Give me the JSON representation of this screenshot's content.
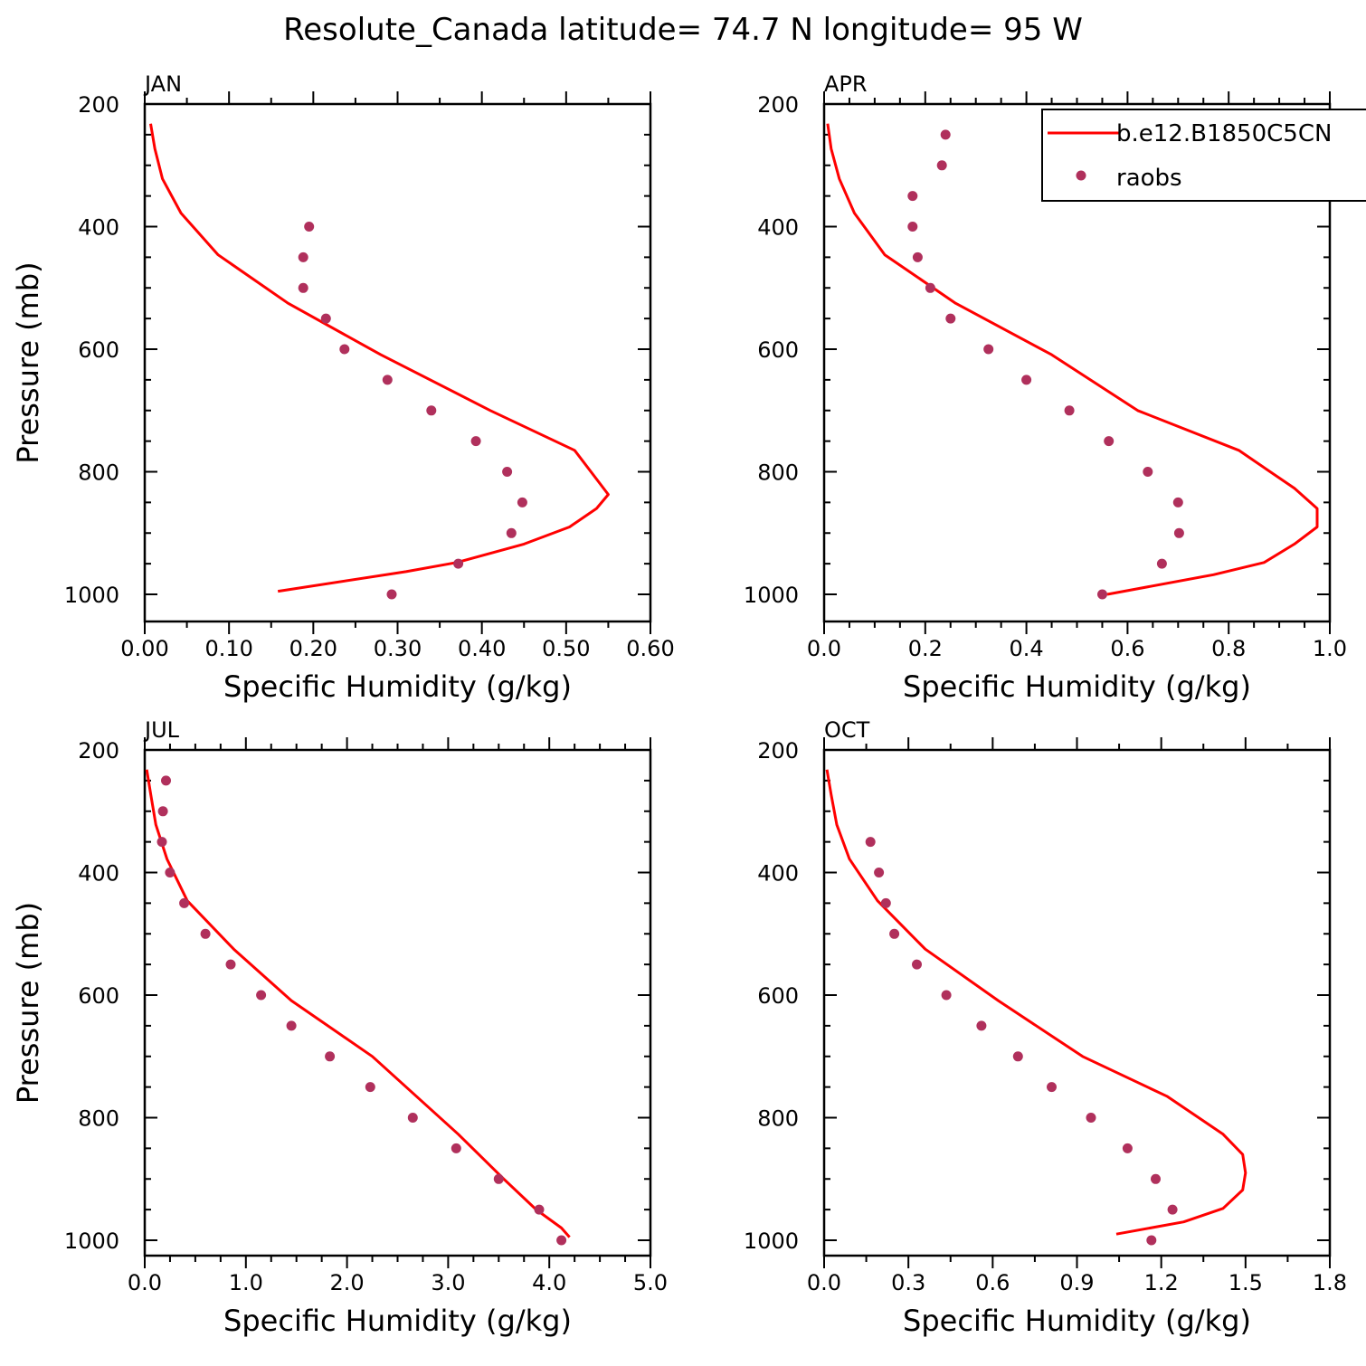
{
  "title": "Resolute_Canada  latitude= 74.7 N longitude= 95 W",
  "colors": {
    "model": "#ff0000",
    "obs": "#b0305c"
  },
  "legend": {
    "model_label": "b.e12.B1850C5CN",
    "obs_label": "raobs"
  },
  "chart_data": [
    {
      "type": "line",
      "panel": "JAN",
      "xlabel": "Specific Humidity (g/kg)",
      "ylabel": "Pressure (mb)",
      "xlim": [
        0,
        0.6
      ],
      "ylim": [
        1000,
        200
      ],
      "xticks": [
        "0.00",
        "0.10",
        "0.20",
        "0.30",
        "0.40",
        "0.50",
        "0.60"
      ],
      "yticks": [
        "200",
        "400",
        "600",
        "800",
        "1000"
      ],
      "series": [
        {
          "name": "b.e12.B1850C5CN",
          "type": "line",
          "x": [
            0.007,
            0.012,
            0.021,
            0.043,
            0.087,
            0.17,
            0.28,
            0.41,
            0.51,
            0.55,
            0.536,
            0.504,
            0.45,
            0.37,
            0.31,
            0.158
          ],
          "y": [
            232,
            273,
            322,
            378,
            446,
            525,
            609,
            700,
            765,
            837,
            860,
            890,
            918,
            948,
            963,
            995
          ]
        },
        {
          "name": "raobs",
          "type": "scatter",
          "x": [
            0.195,
            0.188,
            0.188,
            0.215,
            0.237,
            0.288,
            0.34,
            0.393,
            0.43,
            0.448,
            0.435,
            0.372,
            0.293
          ],
          "y": [
            400,
            450,
            500,
            550,
            600,
            650,
            700,
            750,
            800,
            850,
            900,
            950,
            1000
          ]
        }
      ]
    },
    {
      "type": "line",
      "panel": "APR",
      "xlabel": "Specific Humidity (g/kg)",
      "ylabel": "",
      "xlim": [
        0,
        1.0
      ],
      "ylim": [
        1000,
        200
      ],
      "xticks": [
        "0.0",
        "0.2",
        "0.4",
        "0.6",
        "0.8",
        "1.0"
      ],
      "yticks": [
        "200",
        "400",
        "600",
        "800",
        "1000"
      ],
      "series": [
        {
          "name": "b.e12.B1850C5CN",
          "type": "line",
          "x": [
            0.007,
            0.014,
            0.03,
            0.06,
            0.12,
            0.26,
            0.45,
            0.62,
            0.82,
            0.93,
            0.975,
            0.975,
            0.93,
            0.87,
            0.77,
            0.56
          ],
          "y": [
            232,
            273,
            322,
            378,
            446,
            525,
            609,
            700,
            765,
            827,
            860,
            890,
            918,
            948,
            968,
            1000
          ]
        },
        {
          "name": "raobs",
          "type": "scatter",
          "x": [
            0.24,
            0.233,
            0.175,
            0.175,
            0.185,
            0.21,
            0.25,
            0.325,
            0.4,
            0.485,
            0.563,
            0.64,
            0.7,
            0.702,
            0.668,
            0.55
          ],
          "y": [
            250,
            300,
            350,
            400,
            450,
            500,
            550,
            600,
            650,
            700,
            750,
            800,
            850,
            900,
            950,
            1000
          ]
        }
      ]
    },
    {
      "type": "line",
      "panel": "JUL",
      "xlabel": "Specific Humidity (g/kg)",
      "ylabel": "Pressure (mb)",
      "xlim": [
        0,
        5.0
      ],
      "ylim": [
        1000,
        200
      ],
      "xticks": [
        "0.0",
        "1.0",
        "2.0",
        "3.0",
        "4.0",
        "5.0"
      ],
      "yticks": [
        "200",
        "400",
        "600",
        "800",
        "1000"
      ],
      "series": [
        {
          "name": "b.e12.B1850C5CN",
          "type": "line",
          "x": [
            0.02,
            0.06,
            0.11,
            0.22,
            0.42,
            0.88,
            1.45,
            2.25,
            3.1,
            3.55,
            3.87,
            4.12,
            4.2
          ],
          "y": [
            232,
            273,
            322,
            378,
            446,
            525,
            609,
            700,
            827,
            900,
            950,
            980,
            995
          ]
        },
        {
          "name": "raobs",
          "type": "scatter",
          "x": [
            0.21,
            0.18,
            0.17,
            0.25,
            0.39,
            0.6,
            0.85,
            1.15,
            1.45,
            1.83,
            2.23,
            2.65,
            3.08,
            3.5,
            3.9,
            4.12
          ],
          "y": [
            250,
            300,
            350,
            400,
            450,
            500,
            550,
            600,
            650,
            700,
            750,
            800,
            850,
            900,
            950,
            1000
          ]
        }
      ]
    },
    {
      "type": "line",
      "panel": "OCT",
      "xlabel": "Specific Humidity (g/kg)",
      "ylabel": "",
      "xlim": [
        0,
        1.8
      ],
      "ylim": [
        1000,
        200
      ],
      "xticks": [
        "0.0",
        "0.3",
        "0.6",
        "0.9",
        "1.2",
        "1.5",
        "1.8"
      ],
      "yticks": [
        "200",
        "400",
        "600",
        "800",
        "1000"
      ],
      "series": [
        {
          "name": "b.e12.B1850C5CN",
          "type": "line",
          "x": [
            0.01,
            0.025,
            0.045,
            0.09,
            0.19,
            0.36,
            0.62,
            0.92,
            1.22,
            1.42,
            1.49,
            1.5,
            1.49,
            1.42,
            1.28,
            1.04
          ],
          "y": [
            232,
            273,
            322,
            378,
            446,
            525,
            609,
            700,
            765,
            827,
            860,
            890,
            918,
            948,
            970,
            990
          ]
        },
        {
          "name": "raobs",
          "type": "scatter",
          "x": [
            0.165,
            0.195,
            0.22,
            0.25,
            0.33,
            0.435,
            0.56,
            0.69,
            0.81,
            0.95,
            1.08,
            1.18,
            1.24,
            1.165
          ],
          "y": [
            350,
            400,
            450,
            500,
            550,
            600,
            650,
            700,
            750,
            800,
            850,
            900,
            950,
            1000
          ]
        }
      ]
    }
  ]
}
